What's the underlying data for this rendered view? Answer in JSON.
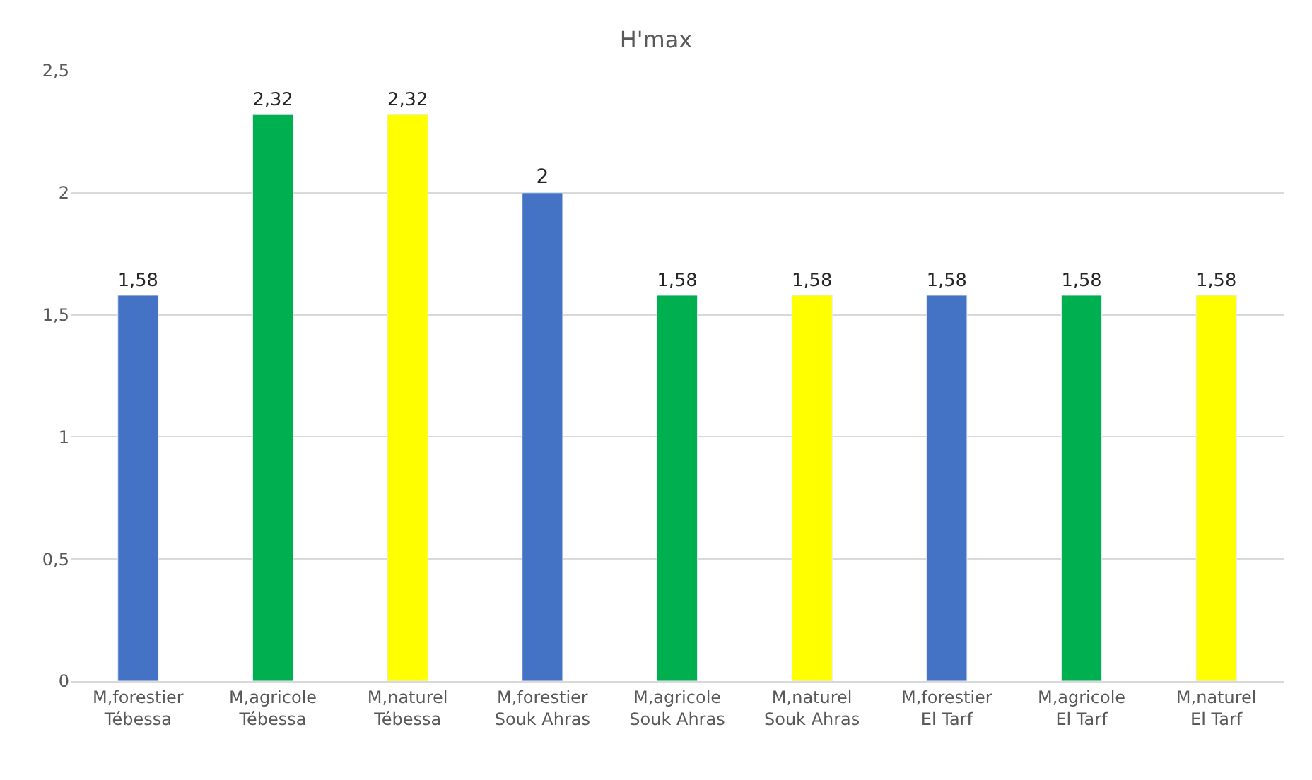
{
  "chart_data": {
    "type": "bar",
    "title": "H'max",
    "categories": [
      "M,forestier\nTébessa",
      "M,agricole\nTébessa",
      "M,naturel\nTébessa",
      "M,forestier\nSouk Ahras",
      "M,agricole\nSouk Ahras",
      "M,naturel\nSouk Ahras",
      "M,forestier\nEl Tarf",
      "M,agricole\nEl Tarf",
      "M,naturel\nEl Tarf"
    ],
    "values": [
      1.58,
      2.32,
      2.32,
      2,
      1.58,
      1.58,
      1.58,
      1.58,
      1.58
    ],
    "colors": [
      "#4472c4",
      "#00b050",
      "#ffff00",
      "#4472c4",
      "#00b050",
      "#ffff00",
      "#4472c4",
      "#00b050",
      "#ffff00"
    ],
    "value_labels": [
      "1,58",
      "2,32",
      "2,32",
      "2",
      "1,58",
      "1,58",
      "1,58",
      "1,58",
      "1,58"
    ],
    "ylim": [
      0,
      2.5
    ],
    "yticks": [
      0,
      {
        "value": 0.5,
        "label": "0,5"
      },
      1,
      {
        "value": 1.5,
        "label": "1,5"
      },
      2,
      {
        "value": 2.5,
        "label": "2,5"
      }
    ],
    "grid": "y"
  }
}
